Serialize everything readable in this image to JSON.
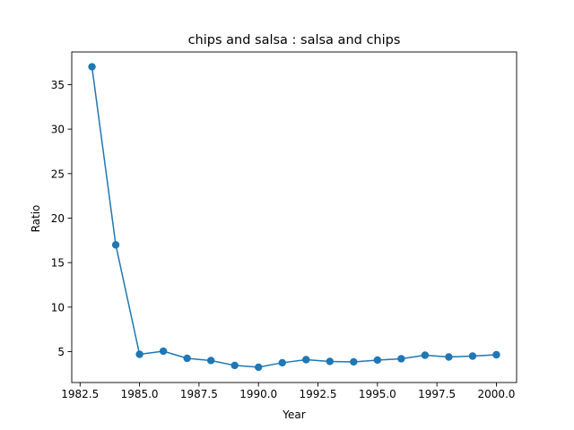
{
  "chart_data": {
    "type": "line",
    "title": "chips and salsa : salsa and chips",
    "xlabel": "Year",
    "ylabel": "Ratio",
    "xlim": [
      1982.15,
      2000.85
    ],
    "ylim": [
      1.53,
      38.67
    ],
    "xticks": [
      1982.5,
      1985.0,
      1987.5,
      1990.0,
      1992.5,
      1995.0,
      1997.5,
      2000.0
    ],
    "xtick_labels": [
      "1982.5",
      "1985.0",
      "1987.5",
      "1990.0",
      "1992.5",
      "1995.0",
      "1997.5",
      "2000.0"
    ],
    "yticks": [
      5,
      10,
      15,
      20,
      25,
      30,
      35
    ],
    "ytick_labels": [
      "5",
      "10",
      "15",
      "20",
      "25",
      "30",
      "35"
    ],
    "grid": false,
    "color": "#1f77b4",
    "x": [
      1983,
      1984,
      1985,
      1986,
      1987,
      1988,
      1989,
      1990,
      1991,
      1992,
      1993,
      1994,
      1995,
      1996,
      1997,
      1998,
      1999,
      2000
    ],
    "y": [
      37.0,
      17.0,
      4.7,
      5.05,
      4.25,
      4.0,
      3.45,
      3.25,
      3.75,
      4.1,
      3.9,
      3.85,
      4.05,
      4.2,
      4.6,
      4.4,
      4.5,
      4.65
    ]
  }
}
